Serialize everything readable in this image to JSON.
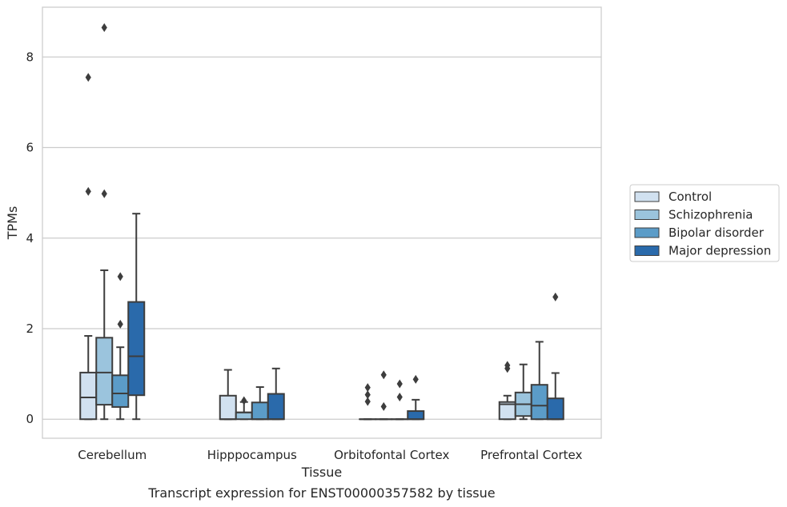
{
  "chart_data": {
    "type": "boxplot",
    "xlabel": "Tissue",
    "ylabel": "TPMs",
    "caption": "Transcript expression for ENST00000357582 by tissue",
    "ylim": [
      -0.42,
      9.1
    ],
    "yticks": [
      "0",
      "2",
      "4",
      "6",
      "8"
    ],
    "grid": true,
    "legend_position": "right",
    "categories": [
      "Cerebellum",
      "Hipppocampus",
      "Orbitofontal Cortex",
      "Prefrontal Cortex"
    ],
    "series": [
      {
        "name": "Control",
        "color": "#d1e1f0",
        "boxes": [
          {
            "whislo": 0,
            "q1": 0,
            "med": 0.48,
            "q3": 1.03,
            "whishi": 1.84,
            "fliers": [
              5.03,
              7.55
            ]
          },
          {
            "whislo": 0,
            "q1": 0,
            "med": 0,
            "q3": 0.52,
            "whishi": 1.09,
            "fliers": []
          },
          {
            "whislo": 0,
            "q1": 0,
            "med": 0,
            "q3": 0,
            "whishi": 0,
            "fliers": [
              0.39,
              0.54,
              0.7
            ]
          },
          {
            "whislo": 0,
            "q1": 0,
            "med": 0.33,
            "q3": 0.38,
            "whishi": 0.52,
            "fliers": [
              1.12,
              1.19
            ]
          }
        ]
      },
      {
        "name": "Schizophrenia",
        "color": "#9bc4dd",
        "boxes": [
          {
            "whislo": 0,
            "q1": 0.32,
            "med": 1.03,
            "q3": 1.8,
            "whishi": 3.29,
            "fliers": [
              4.98,
              8.65
            ]
          },
          {
            "whislo": 0,
            "q1": 0,
            "med": 0.15,
            "q3": 0.15,
            "whishi": 0.38,
            "fliers": [
              0.41
            ]
          },
          {
            "whislo": 0,
            "q1": 0,
            "med": 0,
            "q3": 0,
            "whishi": 0,
            "fliers": [
              0.28,
              0.98
            ]
          },
          {
            "whislo": 0,
            "q1": 0.07,
            "med": 0.33,
            "q3": 0.59,
            "whishi": 1.21,
            "fliers": []
          }
        ]
      },
      {
        "name": "Bipolar disorder",
        "color": "#5b9cc8",
        "boxes": [
          {
            "whislo": 0,
            "q1": 0.27,
            "med": 0.57,
            "q3": 0.97,
            "whishi": 1.59,
            "fliers": [
              2.1,
              3.15
            ]
          },
          {
            "whislo": 0,
            "q1": 0,
            "med": 0,
            "q3": 0.37,
            "whishi": 0.71,
            "fliers": []
          },
          {
            "whislo": 0,
            "q1": 0,
            "med": 0,
            "q3": 0,
            "whishi": 0,
            "fliers": [
              0.49,
              0.78
            ]
          },
          {
            "whislo": 0,
            "q1": 0,
            "med": 0.3,
            "q3": 0.76,
            "whishi": 1.71,
            "fliers": []
          }
        ]
      },
      {
        "name": "Major depression",
        "color": "#2a6aab",
        "boxes": [
          {
            "whislo": 0,
            "q1": 0.53,
            "med": 1.39,
            "q3": 2.59,
            "whishi": 4.54,
            "fliers": []
          },
          {
            "whislo": 0,
            "q1": 0,
            "med": 0,
            "q3": 0.56,
            "whishi": 1.12,
            "fliers": []
          },
          {
            "whislo": 0,
            "q1": 0,
            "med": 0,
            "q3": 0.18,
            "whishi": 0.43,
            "fliers": [
              0.88
            ]
          },
          {
            "whislo": 0,
            "q1": 0,
            "med": 0,
            "q3": 0.46,
            "whishi": 1.02,
            "fliers": [
              2.7
            ]
          }
        ]
      }
    ]
  }
}
